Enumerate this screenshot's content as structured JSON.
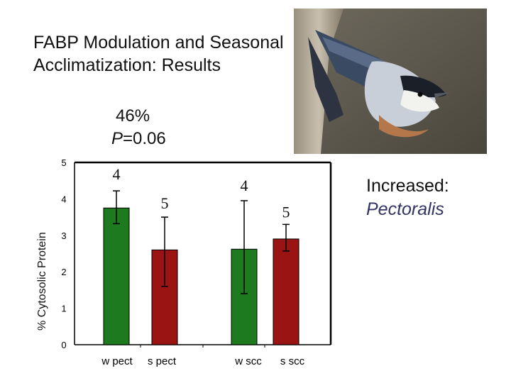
{
  "slide": {
    "title": "FABP Modulation and Seasonal Acclimatization: Results",
    "stat_percent": "46%",
    "stat_p_symbol": "P",
    "stat_p_value": "=0.06",
    "note_line1": "Increased:",
    "note_line2": "Pectoralis"
  },
  "photo": {
    "subject": "nuthatch-bird-photo"
  },
  "chart_data": {
    "type": "bar",
    "ylabel": "% Cytosolic Protein",
    "ylim": [
      0,
      5
    ],
    "yticks": [
      "0",
      "1",
      "2",
      "3",
      "4",
      "5"
    ],
    "categories": [
      "w pect",
      "s pect",
      "w scc",
      "s scc"
    ],
    "values": [
      3.75,
      2.6,
      2.62,
      2.9
    ],
    "error_low": [
      3.32,
      1.6,
      1.4,
      2.57
    ],
    "error_high": [
      4.22,
      3.5,
      3.95,
      3.3
    ],
    "n_labels": [
      "4",
      "5",
      "4",
      "5"
    ],
    "colors": [
      "#1e7a1e",
      "#9a1414",
      "#1e7a1e",
      "#9a1414"
    ],
    "grid": false
  }
}
